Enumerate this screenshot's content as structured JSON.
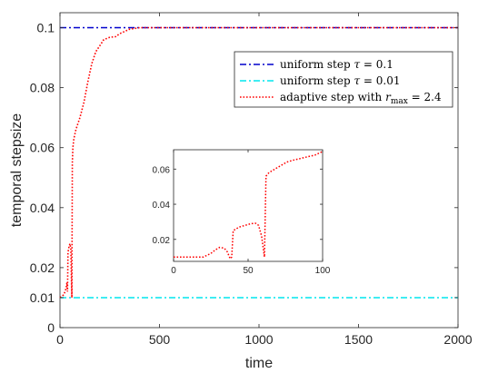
{
  "chart_data": [
    {
      "type": "line",
      "xlabel": "time",
      "ylabel": "temporal stepsize",
      "xlim": [
        0,
        2000
      ],
      "ylim": [
        0,
        0.105
      ],
      "xticks": [
        "0",
        "500",
        "1000",
        "1500",
        "2000"
      ],
      "yticks": [
        "0",
        "0.01",
        "0.02",
        "0.04",
        "0.06",
        "0.08",
        "0.1"
      ],
      "grid": false,
      "legend_position": "top-right",
      "series": [
        {
          "name": "uniform step τ = 0.1",
          "color": "#0000cc",
          "style": "dash-dot",
          "x": [
            0,
            2000
          ],
          "y": [
            0.1,
            0.1
          ]
        },
        {
          "name": "uniform step τ = 0.01",
          "color": "#00e5ee",
          "style": "dash-dot",
          "x": [
            0,
            2000
          ],
          "y": [
            0.01,
            0.01
          ]
        },
        {
          "name": "adaptive step with r_max = 2.4",
          "color": "#ff0000",
          "style": "dotted",
          "x": [
            0,
            20,
            30,
            35,
            38,
            40,
            45,
            50,
            55,
            58,
            60,
            62,
            65,
            70,
            80,
            90,
            100,
            120,
            140,
            160,
            180,
            200,
            220,
            250,
            280,
            300,
            350,
            400,
            500,
            700,
            1000,
            1500,
            2000
          ],
          "y": [
            0.01,
            0.011,
            0.013,
            0.015,
            0.012,
            0.025,
            0.027,
            0.028,
            0.026,
            0.015,
            0.01,
            0.055,
            0.06,
            0.063,
            0.066,
            0.068,
            0.07,
            0.075,
            0.082,
            0.088,
            0.092,
            0.094,
            0.096,
            0.0968,
            0.097,
            0.098,
            0.0995,
            0.1,
            0.1,
            0.1,
            0.1,
            0.1,
            0.1
          ]
        }
      ]
    },
    {
      "type": "line",
      "inset": true,
      "xlim": [
        0,
        100
      ],
      "ylim": [
        0.0075,
        0.071
      ],
      "xticks": [
        "0",
        "50",
        "100"
      ],
      "yticks": [
        "0.02",
        "0.04",
        "0.06"
      ],
      "series": [
        {
          "name": "adaptive step with r_max = 2.4",
          "color": "#ff0000",
          "style": "dotted",
          "x": [
            0,
            15,
            20,
            25,
            28,
            31,
            34,
            36,
            38,
            39,
            40,
            44,
            48,
            52,
            55,
            57,
            59,
            61,
            62,
            63,
            64,
            68,
            72,
            76,
            80,
            85,
            90,
            95,
            100
          ],
          "y": [
            0.01,
            0.01,
            0.01,
            0.012,
            0.014,
            0.0155,
            0.015,
            0.013,
            0.009,
            0.01,
            0.025,
            0.027,
            0.028,
            0.029,
            0.0292,
            0.028,
            0.022,
            0.01,
            0.056,
            0.057,
            0.058,
            0.06,
            0.062,
            0.064,
            0.065,
            0.066,
            0.067,
            0.068,
            0.07
          ]
        }
      ]
    }
  ],
  "legend": {
    "entry1": "uniform step τ = 0.1",
    "entry2": "uniform step τ = 0.01",
    "entry3": "adaptive step with r_max = 2.4"
  }
}
